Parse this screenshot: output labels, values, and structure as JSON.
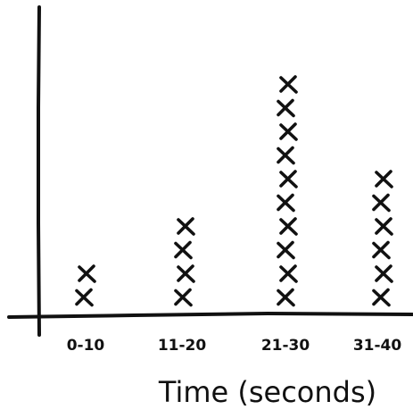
{
  "chart_data": {
    "type": "dot-plot",
    "categories": [
      "0-10",
      "11-20",
      "21-30",
      "31-40"
    ],
    "values": [
      2,
      4,
      10,
      6
    ],
    "xlabel": "Time (seconds)",
    "ylabel": "",
    "title": "",
    "grid": false
  }
}
